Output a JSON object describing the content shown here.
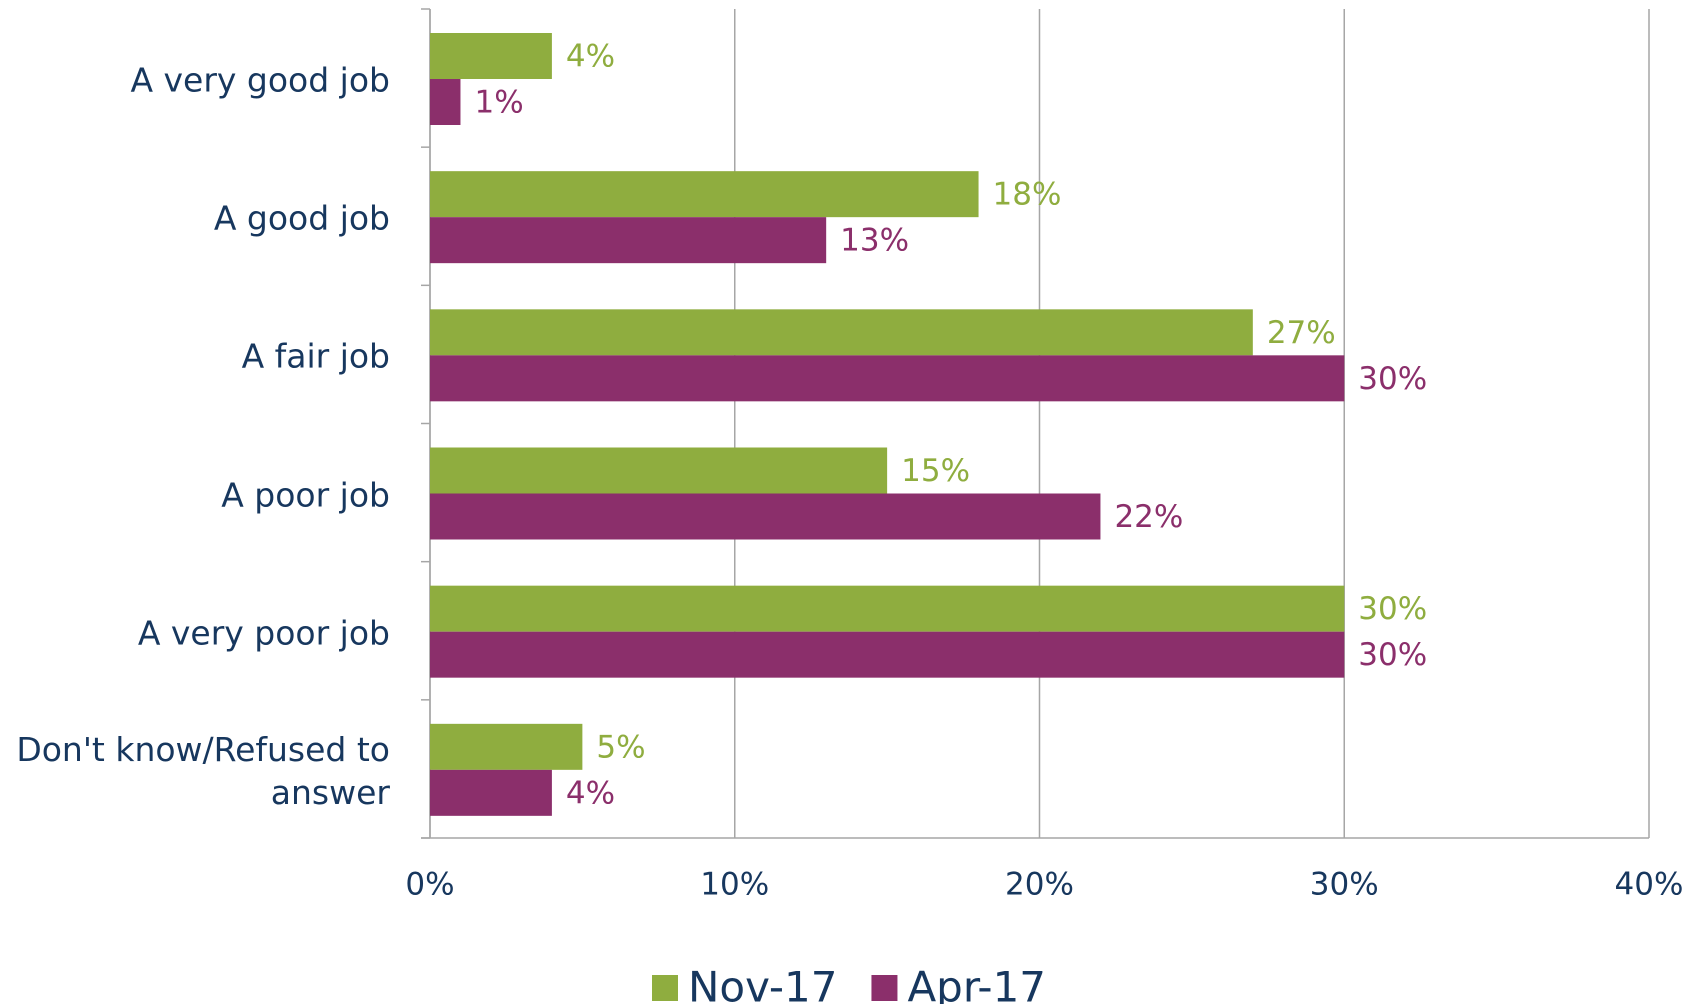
{
  "chart_data": {
    "type": "hbar",
    "categories": [
      "A very good job",
      "A good job",
      "A fair job",
      "A poor job",
      "A very poor job",
      "Don't know/Refused to answer"
    ],
    "series": [
      {
        "name": "Nov-17",
        "color": "#8fad3f",
        "values": [
          4,
          18,
          27,
          15,
          30,
          5
        ],
        "value_labels": [
          "4%",
          "18%",
          "27%",
          "15%",
          "30%",
          "5%"
        ]
      },
      {
        "name": "Apr-17",
        "color": "#8b2f6b",
        "values": [
          1,
          13,
          30,
          22,
          30,
          4
        ],
        "value_labels": [
          "1%",
          "13%",
          "30%",
          "22%",
          "30%",
          "4%"
        ]
      }
    ],
    "xlim": [
      0,
      40
    ],
    "xticks": [
      {
        "value": 0,
        "label": "0%"
      },
      {
        "value": 10,
        "label": "10%"
      },
      {
        "value": 20,
        "label": "20%"
      },
      {
        "value": 30,
        "label": "30%"
      },
      {
        "value": 40,
        "label": "40%"
      }
    ],
    "grid": true,
    "legend": "bottom"
  }
}
